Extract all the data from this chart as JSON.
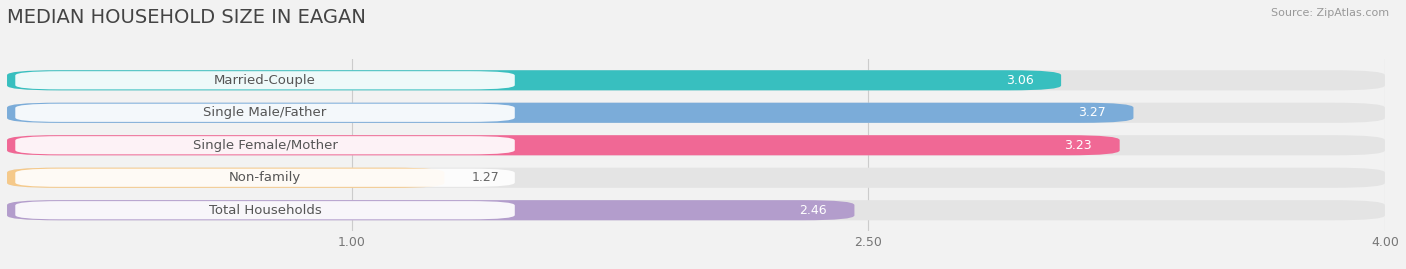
{
  "title": "MEDIAN HOUSEHOLD SIZE IN EAGAN",
  "source": "Source: ZipAtlas.com",
  "categories": [
    "Married-Couple",
    "Single Male/Father",
    "Single Female/Mother",
    "Non-family",
    "Total Households"
  ],
  "values": [
    3.06,
    3.27,
    3.23,
    1.27,
    2.46
  ],
  "bar_colors": [
    "#38bfbf",
    "#7bacd9",
    "#f06895",
    "#f5c98a",
    "#b39dcc"
  ],
  "background_color": "#f2f2f2",
  "bar_bg_color": "#e4e4e4",
  "xlim": [
    0.0,
    4.0
  ],
  "xticks": [
    1.0,
    2.5,
    4.0
  ],
  "xtick_labels": [
    "1.00",
    "2.50",
    "4.00"
  ],
  "title_fontsize": 14,
  "label_fontsize": 9.5,
  "value_fontsize": 9,
  "bar_height": 0.62,
  "value_label_inside_color": "#ffffff",
  "value_label_outside_color": "#666666",
  "label_text_color": "#555555",
  "grid_color": "#cccccc"
}
